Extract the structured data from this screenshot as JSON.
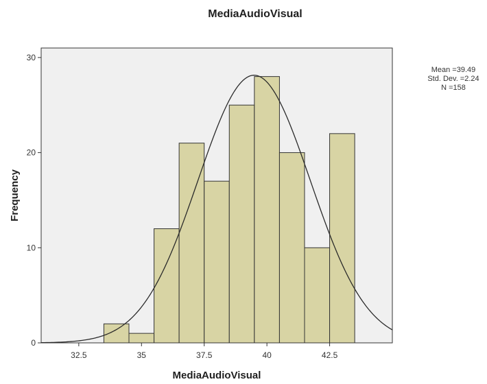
{
  "chart_data": {
    "type": "bar",
    "subtype": "histogram",
    "title": "MediaAudioVisual",
    "xlabel": "MediaAudioVisual",
    "ylabel": "Frequency",
    "xlim": [
      31,
      45
    ],
    "ylim": [
      0,
      31
    ],
    "x_ticks": [
      32.5,
      35,
      37.5,
      40,
      42.5
    ],
    "x_tick_labels": [
      "32.5",
      "35",
      "37.5",
      "40",
      "42.5"
    ],
    "y_ticks": [
      0,
      10,
      20,
      30
    ],
    "y_tick_labels": [
      "0",
      "10",
      "20",
      "30"
    ],
    "bin_width": 1,
    "bins": [
      {
        "x": 34,
        "count": 2
      },
      {
        "x": 35,
        "count": 1
      },
      {
        "x": 36,
        "count": 12
      },
      {
        "x": 37,
        "count": 21
      },
      {
        "x": 38,
        "count": 17
      },
      {
        "x": 39,
        "count": 25
      },
      {
        "x": 40,
        "count": 28
      },
      {
        "x": 41,
        "count": 20
      },
      {
        "x": 42,
        "count": 10
      },
      {
        "x": 43,
        "count": 22
      }
    ],
    "normal_curve": {
      "mean": 39.49,
      "sd": 2.24,
      "n": 158
    },
    "stats": {
      "mean_label": "Mean =39.49",
      "sd_label": "Std. Dev. =2.24",
      "n_label": "N =158"
    },
    "grid": false,
    "colors": {
      "bar_fill": "#d8d4a4",
      "bar_stroke": "#333333",
      "plot_background": "#f0f0f0",
      "curve": "#2a2a2a"
    }
  }
}
